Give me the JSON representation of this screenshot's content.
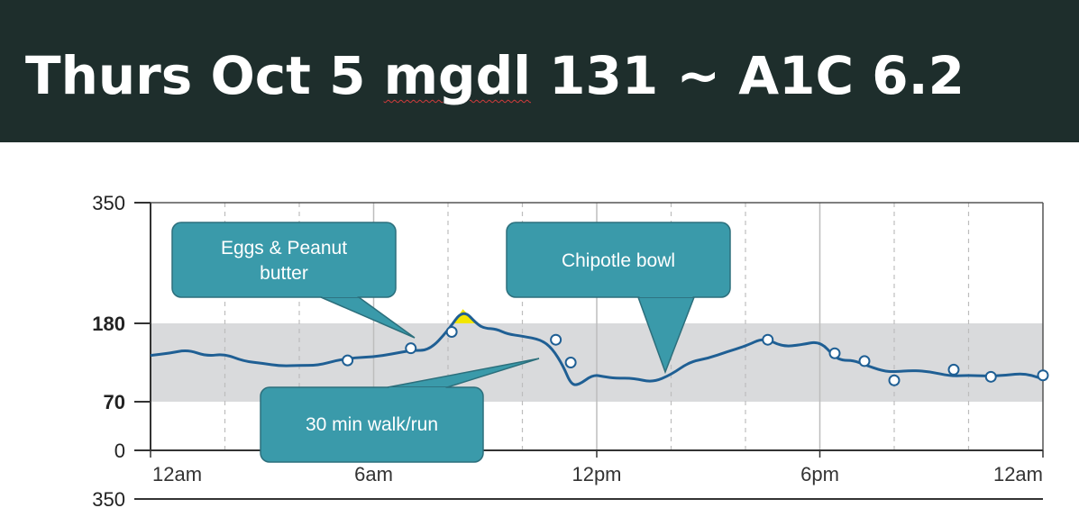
{
  "slide": {
    "title_part1": "Thurs Oct 5 ",
    "title_part2": "mgdl",
    "title_part3": " 131 ~ A1C 6.2"
  },
  "colors": {
    "title_bg": "#1e2e2c",
    "line": "#1f5f94",
    "range_band": "#d9dadc",
    "high_fill": "#f2e600",
    "callout_fill": "#3a9aaa",
    "callout_border": "#2c6f7c"
  },
  "chart_data": {
    "type": "line",
    "title": "",
    "xlabel": "",
    "ylabel": "",
    "x_unit": "hour of day",
    "xlim": [
      0,
      24
    ],
    "ylim": [
      0,
      350
    ],
    "y_scale": "piecewise (0, 70, 180, 350 ticks)",
    "target_range": [
      70,
      180
    ],
    "grid": "vertical dashed every 2 hours",
    "x_ticks": [
      {
        "x": 0,
        "label": "12am"
      },
      {
        "x": 6,
        "label": "6am"
      },
      {
        "x": 12,
        "label": "12pm"
      },
      {
        "x": 18,
        "label": "6pm"
      },
      {
        "x": 24,
        "label": "12am"
      }
    ],
    "y_ticks": [
      {
        "y": 350,
        "label": "350"
      },
      {
        "y": 180,
        "label": "180"
      },
      {
        "y": 70,
        "label": "70"
      },
      {
        "y": 0,
        "label": "0"
      }
    ],
    "bottom_panel_tick": "350",
    "series": [
      {
        "x": [
          0.0,
          0.5,
          1.0,
          1.5,
          2.0,
          2.5,
          3.0,
          3.5,
          4.0,
          4.5,
          5.0,
          5.5,
          6.0,
          6.5,
          7.0,
          7.5,
          8.0,
          8.4,
          8.8,
          9.0,
          9.3,
          9.6,
          10.0,
          10.5,
          10.8,
          11.1,
          11.3,
          11.5,
          11.9,
          12.2,
          12.5,
          13.0,
          13.5,
          14.0,
          14.5,
          15.0,
          15.5,
          16.0,
          16.5,
          17.0,
          17.5,
          18.0,
          18.4,
          18.6,
          18.9,
          19.2,
          19.7,
          20.0,
          20.5,
          21.0,
          21.5,
          22.0,
          22.5,
          23.0,
          23.5,
          24.0
        ],
        "y": [
          135,
          138,
          143,
          134,
          137,
          127,
          124,
          120,
          121,
          121,
          128,
          132,
          133,
          137,
          142,
          142,
          170,
          200,
          178,
          173,
          172,
          165,
          162,
          157,
          145,
          120,
          95,
          93,
          108,
          105,
          103,
          103,
          97,
          108,
          126,
          131,
          140,
          148,
          160,
          147,
          150,
          155,
          133,
          128,
          128,
          122,
          113,
          112,
          114,
          112,
          106,
          107,
          106,
          107,
          110,
          102
        ]
      }
    ],
    "markers": [
      {
        "x": 5.3,
        "y": 128
      },
      {
        "x": 7.0,
        "y": 145
      },
      {
        "x": 8.1,
        "y": 168
      },
      {
        "x": 10.9,
        "y": 157
      },
      {
        "x": 11.3,
        "y": 125
      },
      {
        "x": 16.6,
        "y": 157
      },
      {
        "x": 18.4,
        "y": 138
      },
      {
        "x": 19.2,
        "y": 127
      },
      {
        "x": 20.0,
        "y": 100
      },
      {
        "x": 21.6,
        "y": 115
      },
      {
        "x": 22.6,
        "y": 105
      },
      {
        "x": 24.0,
        "y": 107
      }
    ],
    "annotations": [
      {
        "text_lines": [
          "Eggs & Peanut",
          "butter"
        ]
      },
      {
        "text_lines": [
          "Chipotle bowl"
        ]
      },
      {
        "text_lines": [
          "30 min walk/run"
        ]
      }
    ]
  }
}
